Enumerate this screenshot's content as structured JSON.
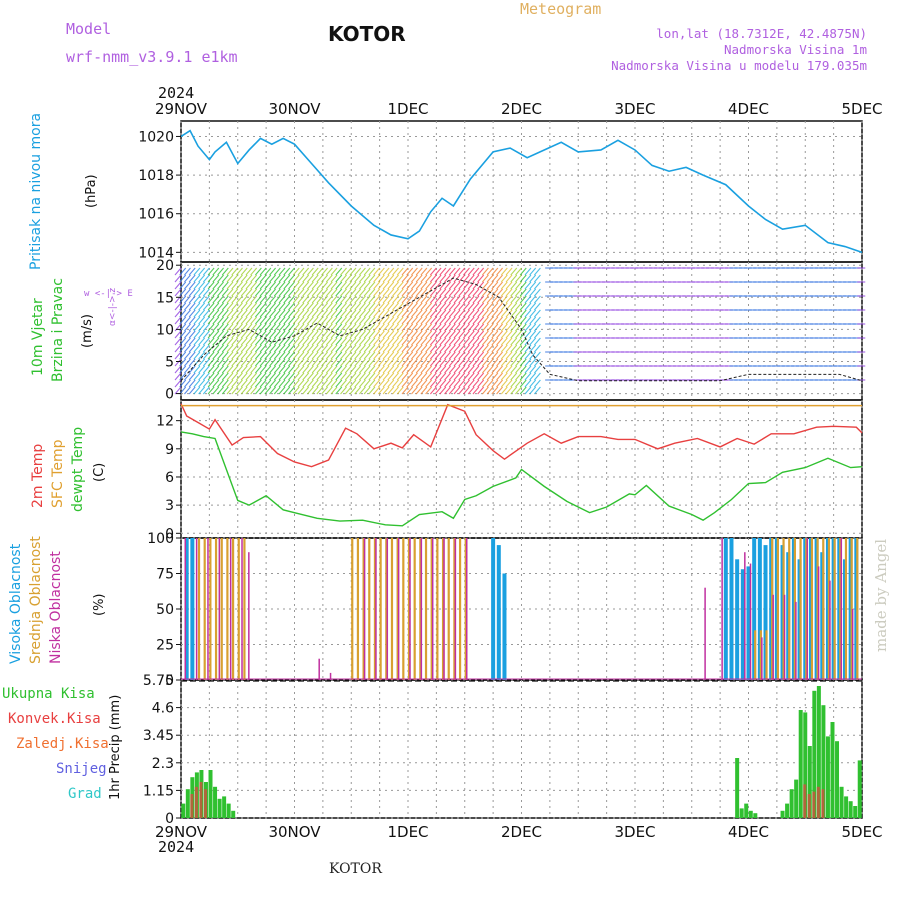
{
  "header": {
    "model_label": "Model",
    "model_name": "wrf-nmm_v3.9.1 e1km",
    "title": "KOTOR",
    "meteogram": "Meteogram",
    "location": "lon,lat (18.7312E, 42.4875N)",
    "altitude": "Nadmorska Visina 1m",
    "model_altitude": "Nadmorska Visina u modelu 179.035m",
    "year_top": "2024",
    "year_bottom": "2024",
    "footer": "KOTOR",
    "watermark": "made by Angel"
  },
  "panel_labels": {
    "pressure": "Pritisak na nivou mora",
    "pressure_unit": "(hPa)",
    "wind1": "10m Vjetar",
    "wind2": "Brzina i Pravac",
    "wind_unit": "(m/s)",
    "wind_dir": "w <-|-> E",
    "wind_dir2": "α<-|-> z",
    "temp1": "2m Temp",
    "temp2": "SFC Temp",
    "temp3": "dewpt Temp",
    "temp_unit": "(C)",
    "cloud1": "Visoka Oblacnost",
    "cloud2": "Srednja Oblacnost",
    "cloud3": "Niska Oblacnost",
    "cloud_unit": "(%)",
    "precip_unit": "1hr Precip (mm)",
    "precip_legend": [
      "Ukupna Kisa",
      "Konvek.Kisa",
      "Zaledj.Kisa",
      "Snijeg",
      "Grad"
    ]
  },
  "colors": {
    "pressure": "#1aa0e0",
    "temp2m": "#e84040",
    "sfc": "#e0a030",
    "dewpt": "#30c030",
    "cloud_high": "#1aa0e0",
    "cloud_mid": "#d8a030",
    "cloud_low": "#c030a0",
    "precip_total": "#30c030",
    "precip_conv": "#e84040",
    "legend": [
      "#30c030",
      "#e84040",
      "#f07030",
      "#6060e0",
      "#30c8c8"
    ]
  },
  "chart_data": [
    {
      "type": "line",
      "title": "Pritisak na nivou mora",
      "ylabel": "(hPa)",
      "x_categories": [
        "29NOV",
        "30NOV",
        "1DEC",
        "2DEC",
        "3DEC",
        "4DEC",
        "5DEC"
      ],
      "ylim": [
        1013.5,
        1020.8
      ],
      "yticks": [
        "1020",
        "1018",
        "1016",
        "1014"
      ],
      "ytick_values": [
        1020,
        1018,
        1016,
        1014
      ],
      "series": [
        {
          "x": [
            0,
            0.08,
            0.15,
            0.25,
            0.3,
            0.4,
            0.5,
            0.6,
            0.7,
            0.8,
            0.9,
            1,
            1.15,
            1.3,
            1.5,
            1.7,
            1.85,
            2,
            2.1,
            2.2,
            2.3,
            2.4,
            2.55,
            2.75,
            2.9,
            3.05,
            3.2,
            3.35,
            3.5,
            3.7,
            3.85,
            4,
            4.15,
            4.3,
            4.45,
            4.6,
            4.8,
            5,
            5.15,
            5.3,
            5.5,
            5.7,
            5.85,
            6
          ],
          "values": [
            1020.0,
            1020.3,
            1019.5,
            1018.8,
            1019.2,
            1019.7,
            1018.6,
            1019.3,
            1019.9,
            1019.6,
            1019.9,
            1019.6,
            1018.6,
            1017.6,
            1016.4,
            1015.4,
            1014.9,
            1014.7,
            1015.1,
            1016.1,
            1016.8,
            1016.4,
            1017.8,
            1019.2,
            1019.4,
            1018.9,
            1019.3,
            1019.7,
            1019.2,
            1019.3,
            1019.8,
            1019.3,
            1018.5,
            1018.2,
            1018.4,
            1018.0,
            1017.5,
            1016.4,
            1015.7,
            1015.2,
            1015.4,
            1014.5,
            1014.3,
            1014.0
          ]
        }
      ]
    },
    {
      "type": "line",
      "title": "10m Vjetar Brzina i Pravac",
      "ylabel": "(m/s)",
      "ylim": [
        -1,
        20.5
      ],
      "yticks": [
        "20",
        "15",
        "10",
        "5",
        "0"
      ],
      "ytick_values": [
        20,
        15,
        10,
        5,
        0
      ],
      "series": [
        {
          "x": [
            0,
            0.2,
            0.4,
            0.6,
            0.8,
            1,
            1.2,
            1.4,
            1.6,
            1.8,
            2,
            2.2,
            2.4,
            2.6,
            2.8,
            3,
            3.1,
            3.25,
            3.5,
            3.75,
            4,
            4.25,
            4.5,
            4.75,
            5,
            5.2,
            5.4,
            5.6,
            5.8,
            6
          ],
          "values": [
            2,
            6,
            9,
            10,
            8,
            9,
            11,
            9,
            10,
            12,
            14,
            16,
            18,
            17,
            15,
            10,
            6,
            3,
            2,
            2,
            2,
            2,
            2,
            2,
            3,
            3,
            3,
            3,
            3,
            2
          ]
        }
      ]
    },
    {
      "type": "line",
      "title": "2m Temp / SFC Temp / dewpt Temp",
      "ylabel": "(C)",
      "ylim": [
        -0.5,
        14.2
      ],
      "yticks": [
        "12",
        "9",
        "6",
        "3",
        "0"
      ],
      "ytick_values": [
        12,
        9,
        6,
        3,
        0
      ],
      "series": [
        {
          "name": "2m Temp",
          "x": [
            0,
            0.05,
            0.15,
            0.25,
            0.3,
            0.45,
            0.55,
            0.7,
            0.85,
            1,
            1.15,
            1.3,
            1.45,
            1.55,
            1.7,
            1.85,
            1.95,
            2.05,
            2.2,
            2.35,
            2.5,
            2.6,
            2.75,
            2.85,
            3.05,
            3.2,
            3.35,
            3.5,
            3.7,
            3.85,
            4,
            4.2,
            4.35,
            4.55,
            4.75,
            4.9,
            5.05,
            5.2,
            5.4,
            5.6,
            5.75,
            5.95,
            6
          ],
          "values": [
            13.8,
            12.5,
            11.8,
            11.1,
            12.1,
            9.4,
            10.2,
            10.3,
            8.5,
            7.6,
            7.1,
            7.8,
            11.2,
            10.6,
            9.0,
            9.6,
            9.1,
            10.5,
            9.2,
            13.7,
            13.0,
            10.5,
            8.8,
            7.9,
            9.6,
            10.6,
            9.6,
            10.3,
            10.3,
            10.0,
            10.0,
            9.0,
            9.6,
            10.1,
            9.2,
            10.1,
            9.5,
            10.6,
            10.6,
            11.3,
            11.4,
            11.3,
            10.7
          ]
        },
        {
          "name": "SFC Temp",
          "x": [
            0,
            6
          ],
          "values": [
            13.6,
            13.6
          ]
        },
        {
          "name": "dewpt Temp",
          "x": [
            0,
            0.1,
            0.2,
            0.3,
            0.5,
            0.6,
            0.75,
            0.9,
            1,
            1.2,
            1.4,
            1.6,
            1.8,
            1.95,
            2.1,
            2.3,
            2.4,
            2.5,
            2.6,
            2.75,
            2.95,
            3,
            3.2,
            3.4,
            3.6,
            3.75,
            3.95,
            4,
            4.1,
            4.3,
            4.5,
            4.6,
            4.7,
            4.85,
            5.0,
            5.15,
            5.3,
            5.5,
            5.7,
            5.9,
            6
          ],
          "values": [
            10.8,
            10.6,
            10.3,
            10.1,
            3.5,
            3.0,
            4.0,
            2.5,
            2.2,
            1.6,
            1.3,
            1.4,
            0.9,
            0.8,
            2.0,
            2.3,
            1.6,
            3.6,
            4.0,
            5.0,
            5.9,
            6.8,
            5.0,
            3.4,
            2.2,
            2.8,
            4.2,
            4.1,
            5.1,
            2.9,
            2.0,
            1.4,
            2.2,
            3.6,
            5.3,
            5.4,
            6.5,
            7.0,
            8.0,
            7.0,
            7.1
          ]
        }
      ]
    },
    {
      "type": "bar",
      "title": "Visoka / Srednja / Niska Oblacnost",
      "ylabel": "(%)",
      "ylim": [
        0,
        100
      ],
      "yticks": [
        "100",
        "75",
        "50",
        "25",
        "0"
      ],
      "ytick_values": [
        100,
        75,
        50,
        25,
        0
      ],
      "groups": [
        {
          "name": "Visoka Oblacnost",
          "x": [
            0.05,
            0.1,
            2.75,
            2.8,
            2.85,
            4.8,
            4.85,
            4.9,
            4.95,
            5.0,
            5.05,
            5.1,
            5.15,
            5.2,
            5.25,
            5.3,
            5.35,
            5.4,
            5.45,
            5.5,
            5.55,
            5.6,
            5.65,
            5.7,
            5.75,
            5.8,
            5.85,
            5.9,
            5.95
          ],
          "values": [
            100,
            100,
            100,
            95,
            75,
            100,
            100,
            85,
            78,
            80,
            100,
            100,
            95,
            100,
            100,
            95,
            90,
            100,
            85,
            100,
            100,
            100,
            90,
            100,
            100,
            100,
            85,
            100,
            100
          ]
        },
        {
          "name": "Srednja Oblacnost",
          "x": [
            0.15,
            0.2,
            0.25,
            0.3,
            0.35,
            0.4,
            0.45,
            0.5,
            0.55,
            1.5,
            1.55,
            1.6,
            1.65,
            1.7,
            1.75,
            1.8,
            1.85,
            1.9,
            1.95,
            2.0,
            2.05,
            2.1,
            2.15,
            2.2,
            2.25,
            2.3,
            2.35,
            2.4,
            2.45,
            2.5,
            5.05,
            5.1,
            5.15,
            5.2,
            5.25,
            5.3,
            5.35,
            5.4,
            5.45,
            5.5,
            5.55,
            5.6,
            5.65,
            5.7,
            5.75,
            5.8,
            5.85,
            5.9,
            5.95
          ],
          "values": [
            100,
            100,
            100,
            100,
            100,
            100,
            100,
            100,
            100,
            100,
            100,
            100,
            100,
            100,
            100,
            100,
            100,
            100,
            100,
            100,
            100,
            100,
            100,
            100,
            100,
            100,
            100,
            100,
            100,
            100,
            35,
            35,
            35,
            100,
            100,
            100,
            100,
            100,
            100,
            100,
            100,
            100,
            100,
            100,
            100,
            100,
            100,
            100,
            100
          ]
        },
        {
          "name": "Niska Oblacnost",
          "x": [
            0.02,
            0.12,
            0.22,
            0.32,
            0.42,
            0.52,
            0.58,
            1.2,
            1.3,
            1.6,
            1.7,
            1.8,
            1.9,
            2.0,
            2.1,
            2.2,
            2.3,
            2.4,
            2.5,
            4.6,
            4.75,
            4.95,
            5.0,
            5.1,
            5.2,
            5.3,
            5.4,
            5.5,
            5.6,
            5.7,
            5.8,
            5.9
          ],
          "values": [
            100,
            100,
            100,
            100,
            100,
            100,
            90,
            15,
            5,
            100,
            100,
            100,
            100,
            100,
            100,
            100,
            100,
            100,
            100,
            65,
            100,
            90,
            82,
            30,
            60,
            60,
            55,
            100,
            80,
            70,
            100,
            50
          ]
        }
      ]
    },
    {
      "type": "bar",
      "title": "1hr Precip",
      "ylabel": "1hr Precip (mm)",
      "ylim": [
        0,
        5.75
      ],
      "yticks": [
        "5.75",
        "4.6",
        "3.45",
        "2.3",
        "1.15",
        "0"
      ],
      "ytick_values": [
        5.75,
        4.6,
        3.45,
        2.3,
        1.15,
        0
      ],
      "series": [
        {
          "name": "Ukupna Kisa",
          "x": [
            0.02,
            0.06,
            0.1,
            0.14,
            0.18,
            0.22,
            0.26,
            0.3,
            0.34,
            0.38,
            0.42,
            0.46,
            4.9,
            4.94,
            4.98,
            5.02,
            5.06,
            5.3,
            5.34,
            5.38,
            5.42,
            5.46,
            5.5,
            5.54,
            5.58,
            5.62,
            5.66,
            5.7,
            5.74,
            5.78,
            5.82,
            5.86,
            5.9,
            5.94,
            5.98
          ],
          "values": [
            0.6,
            1.2,
            1.7,
            1.9,
            2.0,
            1.5,
            2.0,
            1.3,
            0.8,
            0.9,
            0.6,
            0.3,
            2.5,
            0.4,
            0.6,
            0.3,
            0.2,
            0.3,
            0.6,
            1.2,
            1.6,
            4.5,
            4.4,
            3.0,
            5.3,
            5.5,
            4.7,
            3.4,
            4.0,
            3.2,
            1.3,
            0.9,
            0.7,
            0.5,
            2.4
          ]
        },
        {
          "name": "Konvek.Kisa",
          "x": [
            0.1,
            0.14,
            0.18,
            0.22,
            5.5,
            5.54,
            5.58,
            5.62,
            5.66
          ],
          "values": [
            1.0,
            1.3,
            1.5,
            1.2,
            1.4,
            1.0,
            1.1,
            1.3,
            1.2
          ]
        }
      ]
    }
  ]
}
